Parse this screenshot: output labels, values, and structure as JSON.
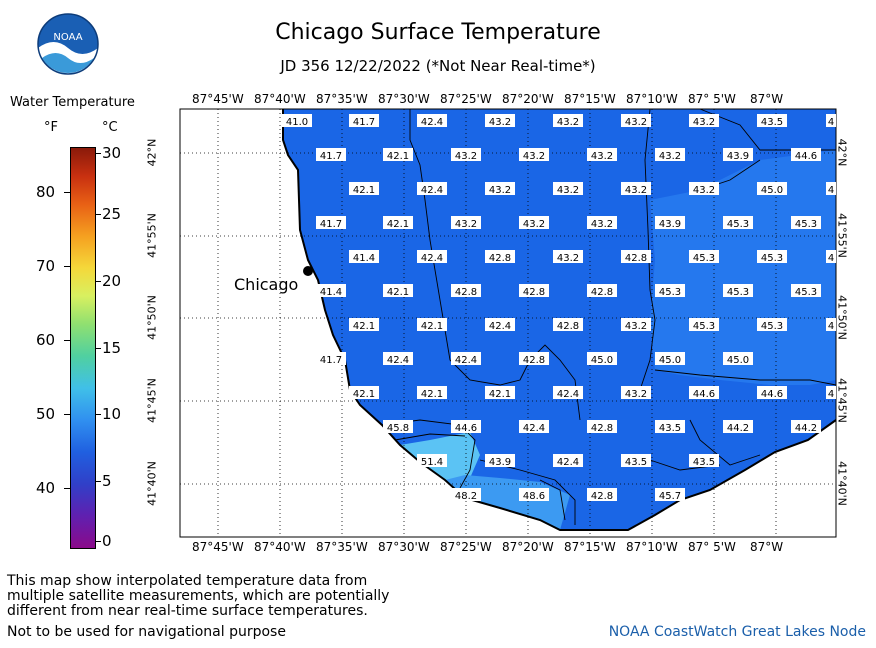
{
  "header": {
    "title": "Chicago Surface Temperature",
    "subtitle": "JD 356 12/22/2022 (*Not Near Real-time*)"
  },
  "logo": {
    "text": "NOAA",
    "icon": "noaa-logo-icon"
  },
  "legend": {
    "title": "Water Temperature",
    "unit_f": "°F",
    "unit_c": "°C",
    "f_ticks": [
      "80",
      "70",
      "60",
      "50",
      "40"
    ],
    "c_ticks": [
      "30",
      "25",
      "20",
      "15",
      "10",
      "5",
      "0"
    ]
  },
  "map": {
    "lon_labels": [
      "87°45'W",
      "87°40'W",
      "87°35'W",
      "87°30'W",
      "87°25'W",
      "87°20'W",
      "87°15'W",
      "87°10'W",
      "87° 5'W",
      "87°W"
    ],
    "lat_labels": [
      "42°N",
      "41°55'N",
      "41°50'N",
      "41°45'N",
      "41°40'N"
    ],
    "city": "Chicago",
    "temps": [
      [
        "41.0",
        "41.7",
        "42.4",
        "43.2",
        "43.2",
        "43.2",
        "43.2",
        "43.5",
        "4"
      ],
      [
        "41.7",
        "42.1",
        "43.2",
        "43.2",
        "43.2",
        "43.2",
        "43.9",
        "44.6"
      ],
      [
        "42.1",
        "42.4",
        "43.2",
        "43.2",
        "43.2",
        "43.2",
        "45.0",
        "4"
      ],
      [
        "41.7",
        "42.1",
        "43.2",
        "43.2",
        "43.2",
        "43.9",
        "45.3",
        "45.3"
      ],
      [
        "41.4",
        "42.4",
        "42.8",
        "43.2",
        "42.8",
        "45.3",
        "45.3",
        "4"
      ],
      [
        "41.4",
        "42.1",
        "42.8",
        "42.8",
        "42.8",
        "45.3",
        "45.3",
        "45.3"
      ],
      [
        "42.1",
        "42.1",
        "42.4",
        "42.8",
        "43.2",
        "45.3",
        "45.3",
        "4"
      ],
      [
        "41.7",
        "42.4",
        "42.4",
        "42.8",
        "45.0",
        "45.0",
        "45.0"
      ],
      [
        "42.1",
        "42.1",
        "42.1",
        "42.4",
        "43.2",
        "44.6",
        "44.6",
        "4"
      ],
      [
        "45.8",
        "44.6",
        "42.4",
        "42.8",
        "43.5",
        "44.2",
        "44.2"
      ],
      [
        "51.4",
        "43.9",
        "42.4",
        "43.5",
        "43.5"
      ],
      [
        "48.2",
        "48.6",
        "42.8",
        "45.7"
      ]
    ]
  },
  "footer": {
    "note_lines": [
      "This map show interpolated temperature data from",
      "multiple satellite measurements, which are potentially",
      "different from near real-time surface temperatures."
    ],
    "warning": "Not to be used for navigational purpose",
    "credit": "NOAA CoastWatch Great Lakes Node"
  },
  "colors": {
    "water_main": "#1a66e6",
    "water_warm": "#2f86f0",
    "water_hot": "#5cc6f5",
    "land": "#ffffff"
  }
}
